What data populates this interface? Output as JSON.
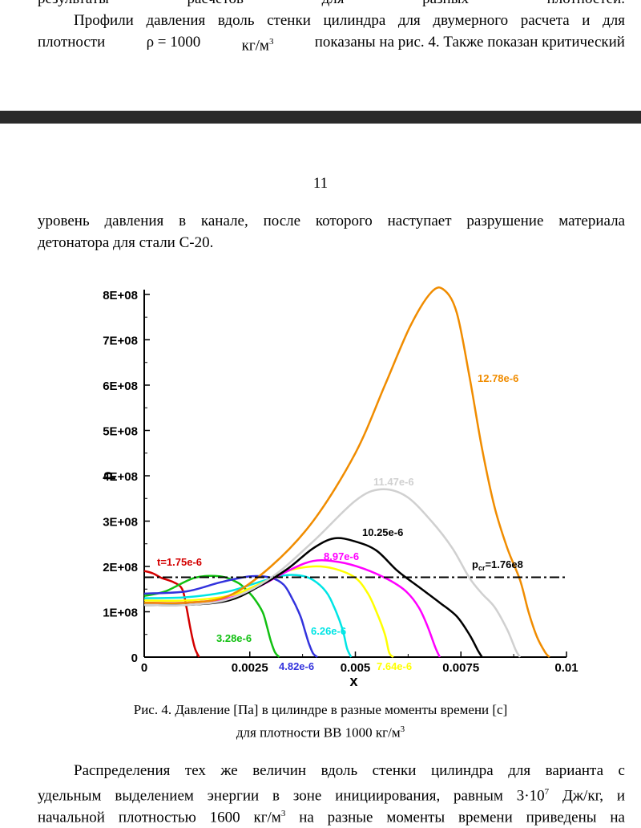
{
  "top_text": {
    "line0": "результаты расчетов для разных плотностей.",
    "line1": "Профили давления вдоль стенки цилиндра для двумерного расчета и для",
    "line2_a": "плотности",
    "line2_rho": "ρ = 1000",
    "line2_unit": "кг/м",
    "line2_b": "показаны на рис. 4. Также показан критический"
  },
  "page_number": "11",
  "mid_text": {
    "line1": "уровень давления в канале, после которого наступает разрушение материала",
    "line2": "детонатора для стали С-20."
  },
  "caption": {
    "line1": "Рис. 4. Давление [Па] в цилиндре в разные моменты времени [с]",
    "line2_prefix": "для плотности ВВ 1000 кг/м"
  },
  "bottom_text": {
    "line1": "Распределения тех же величин вдоль стенки цилиндра для варианта с",
    "line2_a": "удельным выделением энергии в зоне инициирования, равным 3·10",
    "line2_exp": "7",
    "line2_b": " Дж/кг, и",
    "line3_a": "начальной плотностью 1600 кг/м",
    "line3_b": " на разные моменты времени приведены на"
  },
  "superscript_3": "3",
  "chart_data": {
    "type": "line",
    "xlabel": "x",
    "ylabel": "p",
    "xlim": [
      0,
      0.01
    ],
    "ylim": [
      0,
      800000000
    ],
    "x_ticks": [
      "0",
      "0.0025",
      "0.005",
      "0.0075",
      "0.01"
    ],
    "y_ticks": [
      "0",
      "1E+08",
      "2E+08",
      "3E+08",
      "4E+08",
      "5E+08",
      "6E+08",
      "7E+08",
      "8E+08"
    ],
    "critical_level": {
      "label_prefix": "p",
      "label_sub": "cr",
      "label_suffix": "=1.76e8",
      "value": 176000000
    },
    "series": [
      {
        "name": "t=1.75e-6",
        "color": "#d40000",
        "x": [
          0,
          0.0002,
          0.0004,
          0.0007,
          0.0009,
          0.001,
          0.0011,
          0.0012,
          0.0013
        ],
        "y": [
          190000000,
          185000000,
          175000000,
          165000000,
          150000000,
          110000000,
          60000000,
          20000000,
          0
        ]
      },
      {
        "name": "3.28e-6",
        "color": "#11c011",
        "x": [
          0,
          0.0005,
          0.0012,
          0.0018,
          0.0022,
          0.0024,
          0.0026,
          0.0028,
          0.0029,
          0.003,
          0.0031,
          0.0032
        ],
        "y": [
          135000000,
          145000000,
          175000000,
          178000000,
          165000000,
          150000000,
          130000000,
          100000000,
          70000000,
          35000000,
          10000000,
          0
        ]
      },
      {
        "name": "4.82e-6",
        "color": "#3333dd",
        "x": [
          0,
          0.001,
          0.0018,
          0.0025,
          0.003,
          0.0033,
          0.0035,
          0.0037,
          0.0038,
          0.0039,
          0.004,
          0.0041
        ],
        "y": [
          140000000,
          145000000,
          165000000,
          178000000,
          175000000,
          160000000,
          130000000,
          90000000,
          60000000,
          30000000,
          8000000,
          0
        ]
      },
      {
        "name": "6.26e-6",
        "color": "#00e5e5",
        "x": [
          0,
          0.001,
          0.002,
          0.0027,
          0.0033,
          0.0037,
          0.004,
          0.0043,
          0.0045,
          0.0047,
          0.0048,
          0.0049
        ],
        "y": [
          130000000,
          132000000,
          145000000,
          165000000,
          180000000,
          180000000,
          170000000,
          145000000,
          110000000,
          60000000,
          20000000,
          0
        ]
      },
      {
        "name": "7.64e-6",
        "color": "#ffff00",
        "x": [
          0,
          0.001,
          0.002,
          0.0027,
          0.0034,
          0.004,
          0.0045,
          0.005,
          0.0053,
          0.0055,
          0.0057,
          0.0058,
          0.0059
        ],
        "y": [
          125000000,
          125000000,
          135000000,
          160000000,
          190000000,
          200000000,
          195000000,
          175000000,
          140000000,
          100000000,
          50000000,
          10000000,
          0
        ]
      },
      {
        "name": "8.97e-6",
        "color": "#ff00ff",
        "x": [
          0,
          0.001,
          0.002,
          0.0027,
          0.0034,
          0.004,
          0.0046,
          0.0052,
          0.0058,
          0.0062,
          0.0065,
          0.0067,
          0.0069,
          0.007
        ],
        "y": [
          120000000,
          120000000,
          130000000,
          155000000,
          190000000,
          212000000,
          210000000,
          195000000,
          170000000,
          145000000,
          110000000,
          70000000,
          20000000,
          0
        ]
      },
      {
        "name": "10.25e-6",
        "color": "#000000",
        "x": [
          0,
          0.001,
          0.002,
          0.0027,
          0.0034,
          0.004,
          0.0045,
          0.005,
          0.0055,
          0.006,
          0.0065,
          0.007,
          0.0074,
          0.0077,
          0.0079,
          0.008
        ],
        "y": [
          115000000,
          115000000,
          125000000,
          155000000,
          195000000,
          240000000,
          262000000,
          255000000,
          235000000,
          190000000,
          155000000,
          120000000,
          90000000,
          50000000,
          15000000,
          0
        ]
      },
      {
        "name": "11.47e-6",
        "color": "#d0d0d0",
        "x": [
          0,
          0.001,
          0.002,
          0.003,
          0.004,
          0.005,
          0.0056,
          0.0062,
          0.0068,
          0.0073,
          0.0077,
          0.008,
          0.0083,
          0.0086,
          0.0088,
          0.0089
        ],
        "y": [
          115000000,
          115000000,
          128000000,
          175000000,
          255000000,
          345000000,
          370000000,
          355000000,
          300000000,
          240000000,
          175000000,
          140000000,
          110000000,
          60000000,
          15000000,
          0
        ]
      },
      {
        "name": "12.78e-6",
        "color": "#f08c00",
        "x": [
          0,
          0.001,
          0.002,
          0.003,
          0.004,
          0.005,
          0.0057,
          0.0063,
          0.0068,
          0.0071,
          0.0074,
          0.0077,
          0.008,
          0.0083,
          0.0086,
          0.0089,
          0.0091,
          0.0093,
          0.0095,
          0.0096
        ],
        "y": [
          120000000,
          120000000,
          135000000,
          200000000,
          300000000,
          450000000,
          600000000,
          730000000,
          805000000,
          810000000,
          760000000,
          620000000,
          460000000,
          330000000,
          240000000,
          170000000,
          100000000,
          45000000,
          10000000,
          0
        ]
      }
    ]
  }
}
